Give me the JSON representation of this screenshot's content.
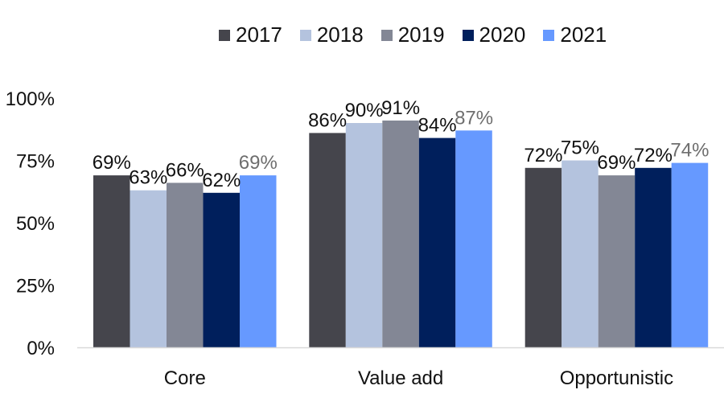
{
  "chart_data": {
    "type": "bar",
    "title": "",
    "xlabel": "",
    "ylabel": "",
    "categories": [
      "Core",
      "Value add",
      "Opportunistic"
    ],
    "series": [
      {
        "name": "2017",
        "color": "#45454c",
        "values": [
          69,
          86,
          72
        ]
      },
      {
        "name": "2018",
        "color": "#b4c3de",
        "values": [
          63,
          90,
          75
        ]
      },
      {
        "name": "2019",
        "color": "#838795",
        "values": [
          66,
          91,
          69
        ]
      },
      {
        "name": "2020",
        "color": "#001f5c",
        "values": [
          62,
          84,
          72
        ]
      },
      {
        "name": "2021",
        "color": "#6699ff",
        "values": [
          69,
          87,
          74
        ]
      }
    ],
    "value_suffix": "%",
    "ylim": [
      0,
      100
    ],
    "yticks": [
      0,
      25,
      50,
      75,
      100
    ],
    "ytick_labels": [
      "0%",
      "25%",
      "50%",
      "75%",
      "100%"
    ],
    "grid": false,
    "legend_position": "top",
    "label_colors": {
      "default": "#111111",
      "last_series": "#6e6e6e"
    }
  }
}
